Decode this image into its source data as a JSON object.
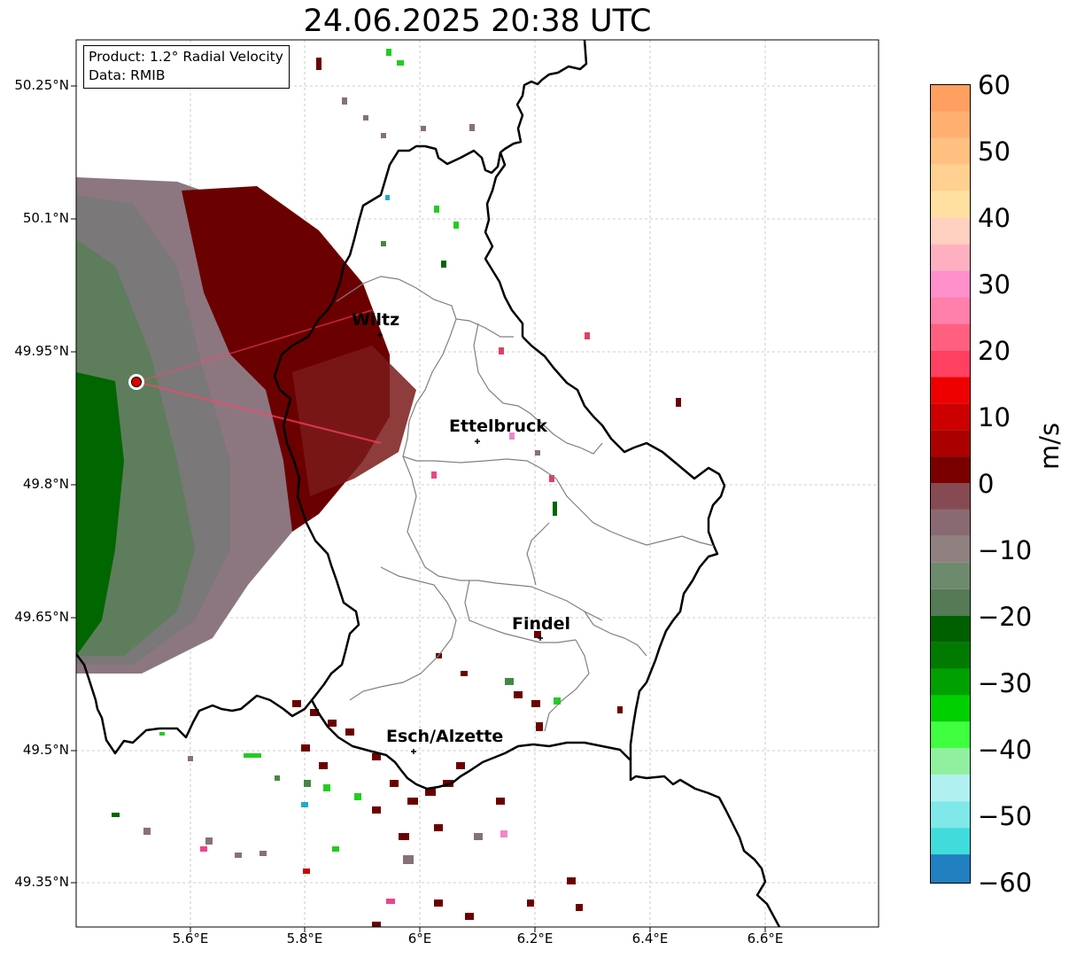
{
  "title": "24.06.2025 20:38 UTC",
  "info_box": {
    "line1": "Product: 1.2° Radial Velocity",
    "line2": "Data: RMIB"
  },
  "lat_labels": [
    "50.25°N",
    "50.1°N",
    "49.95°N",
    "49.8°N",
    "49.65°N",
    "49.5°N",
    "49.35°N"
  ],
  "lon_labels": [
    "5.6°E",
    "5.8°E",
    "6°E",
    "6.2°E",
    "6.4°E",
    "6.6°E"
  ],
  "cities": [
    {
      "name": "Wiltz"
    },
    {
      "name": "Ettelbruck"
    },
    {
      "name": "Findel"
    },
    {
      "name": "Esch/Alzette"
    }
  ],
  "colorbar": {
    "unit": "m/s",
    "ticks": [
      "60",
      "50",
      "40",
      "30",
      "20",
      "10",
      "0",
      "−10",
      "−20",
      "−30",
      "−40",
      "−50",
      "−60"
    ],
    "range": [
      -60,
      60
    ]
  },
  "colors": {
    "outgoing_dark": "#6b0000",
    "outgoing_light": "#8a6a72",
    "neutral": "#7a7a7a",
    "incoming_light": "#5e7d5c",
    "incoming_dark": "#006600",
    "radar_marker": "#dd0000"
  }
}
